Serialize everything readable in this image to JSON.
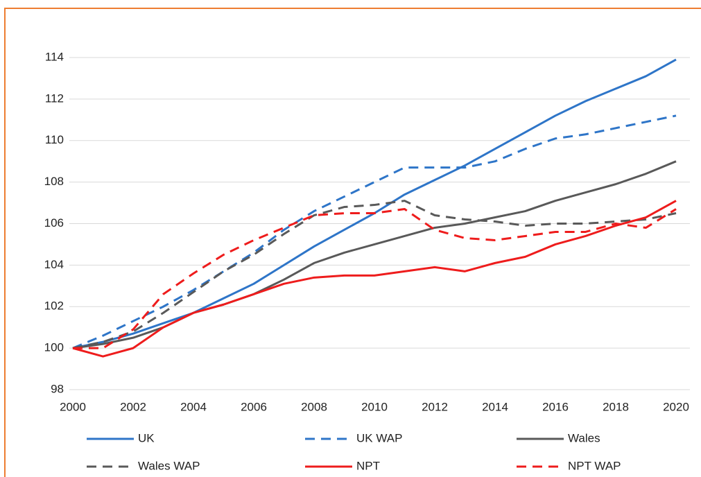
{
  "chart_data": {
    "type": "line",
    "x": [
      2000,
      2001,
      2002,
      2003,
      2004,
      2005,
      2006,
      2007,
      2008,
      2009,
      2010,
      2011,
      2012,
      2013,
      2014,
      2015,
      2016,
      2017,
      2018,
      2019,
      2020
    ],
    "xlim": [
      2000,
      2020
    ],
    "xticks": [
      2000,
      2002,
      2004,
      2006,
      2008,
      2010,
      2012,
      2014,
      2016,
      2018,
      2020
    ],
    "ylim": [
      98,
      114
    ],
    "yticks": [
      98,
      100,
      102,
      104,
      106,
      108,
      110,
      112,
      114
    ],
    "grid": true,
    "series": [
      {
        "name": "UK",
        "color": "#2e75c8",
        "dashed": false,
        "values": [
          100,
          100.3,
          100.7,
          101.2,
          101.7,
          102.4,
          103.1,
          104.0,
          104.9,
          105.7,
          106.5,
          107.4,
          108.1,
          108.8,
          109.6,
          110.4,
          111.2,
          111.9,
          112.5,
          113.1,
          113.9
        ]
      },
      {
        "name": "UK WAP",
        "color": "#2e75c8",
        "dashed": true,
        "values": [
          100,
          100.6,
          101.3,
          102.0,
          102.8,
          103.7,
          104.6,
          105.7,
          106.6,
          107.3,
          108.0,
          108.7,
          108.7,
          108.7,
          109.0,
          109.6,
          110.1,
          110.3,
          110.6,
          110.9,
          111.2
        ]
      },
      {
        "name": "Wales",
        "color": "#595959",
        "dashed": false,
        "values": [
          100,
          100.2,
          100.5,
          101.0,
          101.7,
          102.1,
          102.6,
          103.3,
          104.1,
          104.6,
          105.0,
          105.4,
          105.8,
          106.0,
          106.3,
          106.6,
          107.1,
          107.5,
          107.9,
          108.4,
          109.0
        ]
      },
      {
        "name": "Wales WAP",
        "color": "#595959",
        "dashed": true,
        "values": [
          100,
          100.3,
          100.8,
          101.7,
          102.7,
          103.7,
          104.5,
          105.5,
          106.4,
          106.8,
          106.9,
          107.1,
          106.4,
          106.2,
          106.1,
          105.9,
          106.0,
          106.0,
          106.1,
          106.2,
          106.5
        ]
      },
      {
        "name": "NPT",
        "color": "#ee1c1c",
        "dashed": false,
        "values": [
          100,
          99.6,
          100.0,
          101.0,
          101.7,
          102.1,
          102.6,
          103.1,
          103.4,
          103.5,
          103.5,
          103.7,
          103.9,
          103.7,
          104.1,
          104.4,
          105.0,
          105.4,
          105.9,
          106.3,
          107.1
        ]
      },
      {
        "name": "NPT WAP",
        "color": "#ee1c1c",
        "dashed": true,
        "values": [
          100,
          100.0,
          100.9,
          102.6,
          103.6,
          104.5,
          105.2,
          105.8,
          106.4,
          106.5,
          106.5,
          106.7,
          105.7,
          105.3,
          105.2,
          105.4,
          105.6,
          105.6,
          106.0,
          105.8,
          106.7
        ]
      }
    ]
  }
}
